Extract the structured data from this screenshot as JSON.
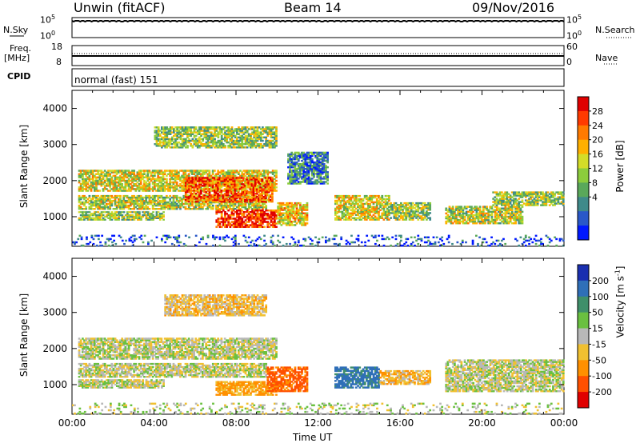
{
  "header": {
    "station": "Unwin (fitACF)",
    "beam": "Beam 14",
    "date": "09/Nov/2016"
  },
  "strip_panels": {
    "nsky_label": "N.Sky",
    "nsky_ticks": [
      "10^5",
      "10^0"
    ],
    "nsearch_label": "N.Search",
    "nsearch_ticks": [
      "10^5",
      "10^0"
    ],
    "freq_label_1": "Freq.",
    "freq_label_2": "[MHz]",
    "freq_ticks": [
      "18",
      "8"
    ],
    "nave_label": "Nave",
    "nave_ticks": [
      "60",
      "0"
    ],
    "cpid_label": "CPID",
    "cpid_text": "normal (fast) 151"
  },
  "chart_data": [
    {
      "type": "heatmap",
      "name": "power",
      "ylabel": "Slant Range [km]",
      "ylim": [
        180,
        4500
      ],
      "yticks": [
        "1000",
        "2000",
        "3000",
        "4000"
      ],
      "colorbar_label": "Power [dB]",
      "colorbar_ticks": [
        "28",
        "24",
        "20",
        "16",
        "12",
        "8",
        "4"
      ],
      "colorbar_colors": [
        "#0018ff",
        "#2a58c8",
        "#3f8a8a",
        "#5aa85a",
        "#8ccc3c",
        "#d4dc28",
        "#ffb000",
        "#ff7a00",
        "#ff3a00",
        "#e00000"
      ],
      "regions": [
        {
          "t0": 0.3,
          "t1": 10.0,
          "r0": 1700,
          "r1": 2300,
          "level": 0.55
        },
        {
          "t0": 0.3,
          "t1": 9.5,
          "r0": 1200,
          "r1": 1600,
          "level": 0.5
        },
        {
          "t0": 0.3,
          "t1": 4.5,
          "r0": 900,
          "r1": 1150,
          "level": 0.45
        },
        {
          "t0": 5.5,
          "t1": 9.8,
          "r0": 1400,
          "r1": 2100,
          "level": 0.8
        },
        {
          "t0": 7.0,
          "t1": 10.0,
          "r0": 700,
          "r1": 1200,
          "level": 0.9
        },
        {
          "t0": 10.0,
          "t1": 11.5,
          "r0": 750,
          "r1": 1400,
          "level": 0.6
        },
        {
          "t0": 4.0,
          "t1": 10.0,
          "r0": 2900,
          "r1": 3500,
          "level": 0.45
        },
        {
          "t0": 10.5,
          "t1": 12.5,
          "r0": 1900,
          "r1": 2800,
          "level": 0.25
        },
        {
          "t0": 12.8,
          "t1": 15.5,
          "r0": 900,
          "r1": 1600,
          "level": 0.55
        },
        {
          "t0": 15.5,
          "t1": 17.5,
          "r0": 900,
          "r1": 1400,
          "level": 0.45
        },
        {
          "t0": 18.2,
          "t1": 22.0,
          "r0": 800,
          "r1": 1300,
          "level": 0.5
        },
        {
          "t0": 20.5,
          "t1": 24.0,
          "r0": 1300,
          "r1": 1700,
          "level": 0.45
        },
        {
          "t0": 0.0,
          "t1": 24.0,
          "r0": 180,
          "r1": 500,
          "level": 0.15
        }
      ]
    },
    {
      "type": "heatmap",
      "name": "velocity",
      "ylabel": "Slant Range [km]",
      "ylim": [
        180,
        4500
      ],
      "yticks": [
        "1000",
        "2000",
        "3000",
        "4000"
      ],
      "xlabel": "Time UT",
      "xticks": [
        "00:00",
        "04:00",
        "08:00",
        "12:00",
        "16:00",
        "20:00",
        "00:00"
      ],
      "colorbar_label": "Velocity [m s^-1]",
      "colorbar_ticks": [
        "200",
        "100",
        "50",
        "15",
        "-15",
        "-50",
        "-100",
        "-200"
      ],
      "colorbar_colors": [
        "#1a2fb0",
        "#2f6fb8",
        "#3f8f6a",
        "#6ac040",
        "#b8b8b8",
        "#f0c030",
        "#ff9000",
        "#ff5000",
        "#e00000"
      ],
      "regions": [
        {
          "t0": 0.3,
          "t1": 10.0,
          "r0": 1700,
          "r1": 2300,
          "vel": 0
        },
        {
          "t0": 0.3,
          "t1": 9.5,
          "r0": 1200,
          "r1": 1600,
          "vel": 0
        },
        {
          "t0": 0.3,
          "t1": 4.5,
          "r0": 900,
          "r1": 1150,
          "vel": 0
        },
        {
          "t0": 7.0,
          "t1": 10.0,
          "r0": 700,
          "r1": 1100,
          "vel": -60
        },
        {
          "t0": 9.5,
          "t1": 11.5,
          "r0": 800,
          "r1": 1500,
          "vel": -120
        },
        {
          "t0": 12.8,
          "t1": 15.0,
          "r0": 900,
          "r1": 1500,
          "vel": 120
        },
        {
          "t0": 15.0,
          "t1": 17.5,
          "r0": 1000,
          "r1": 1400,
          "vel": -40
        },
        {
          "t0": 4.5,
          "t1": 9.5,
          "r0": 2900,
          "r1": 3500,
          "vel": -30
        },
        {
          "t0": 18.2,
          "t1": 24.0,
          "r0": 800,
          "r1": 1700,
          "vel": 0
        },
        {
          "t0": 0.0,
          "t1": 24.0,
          "r0": 180,
          "r1": 500,
          "vel": 5
        }
      ]
    }
  ]
}
